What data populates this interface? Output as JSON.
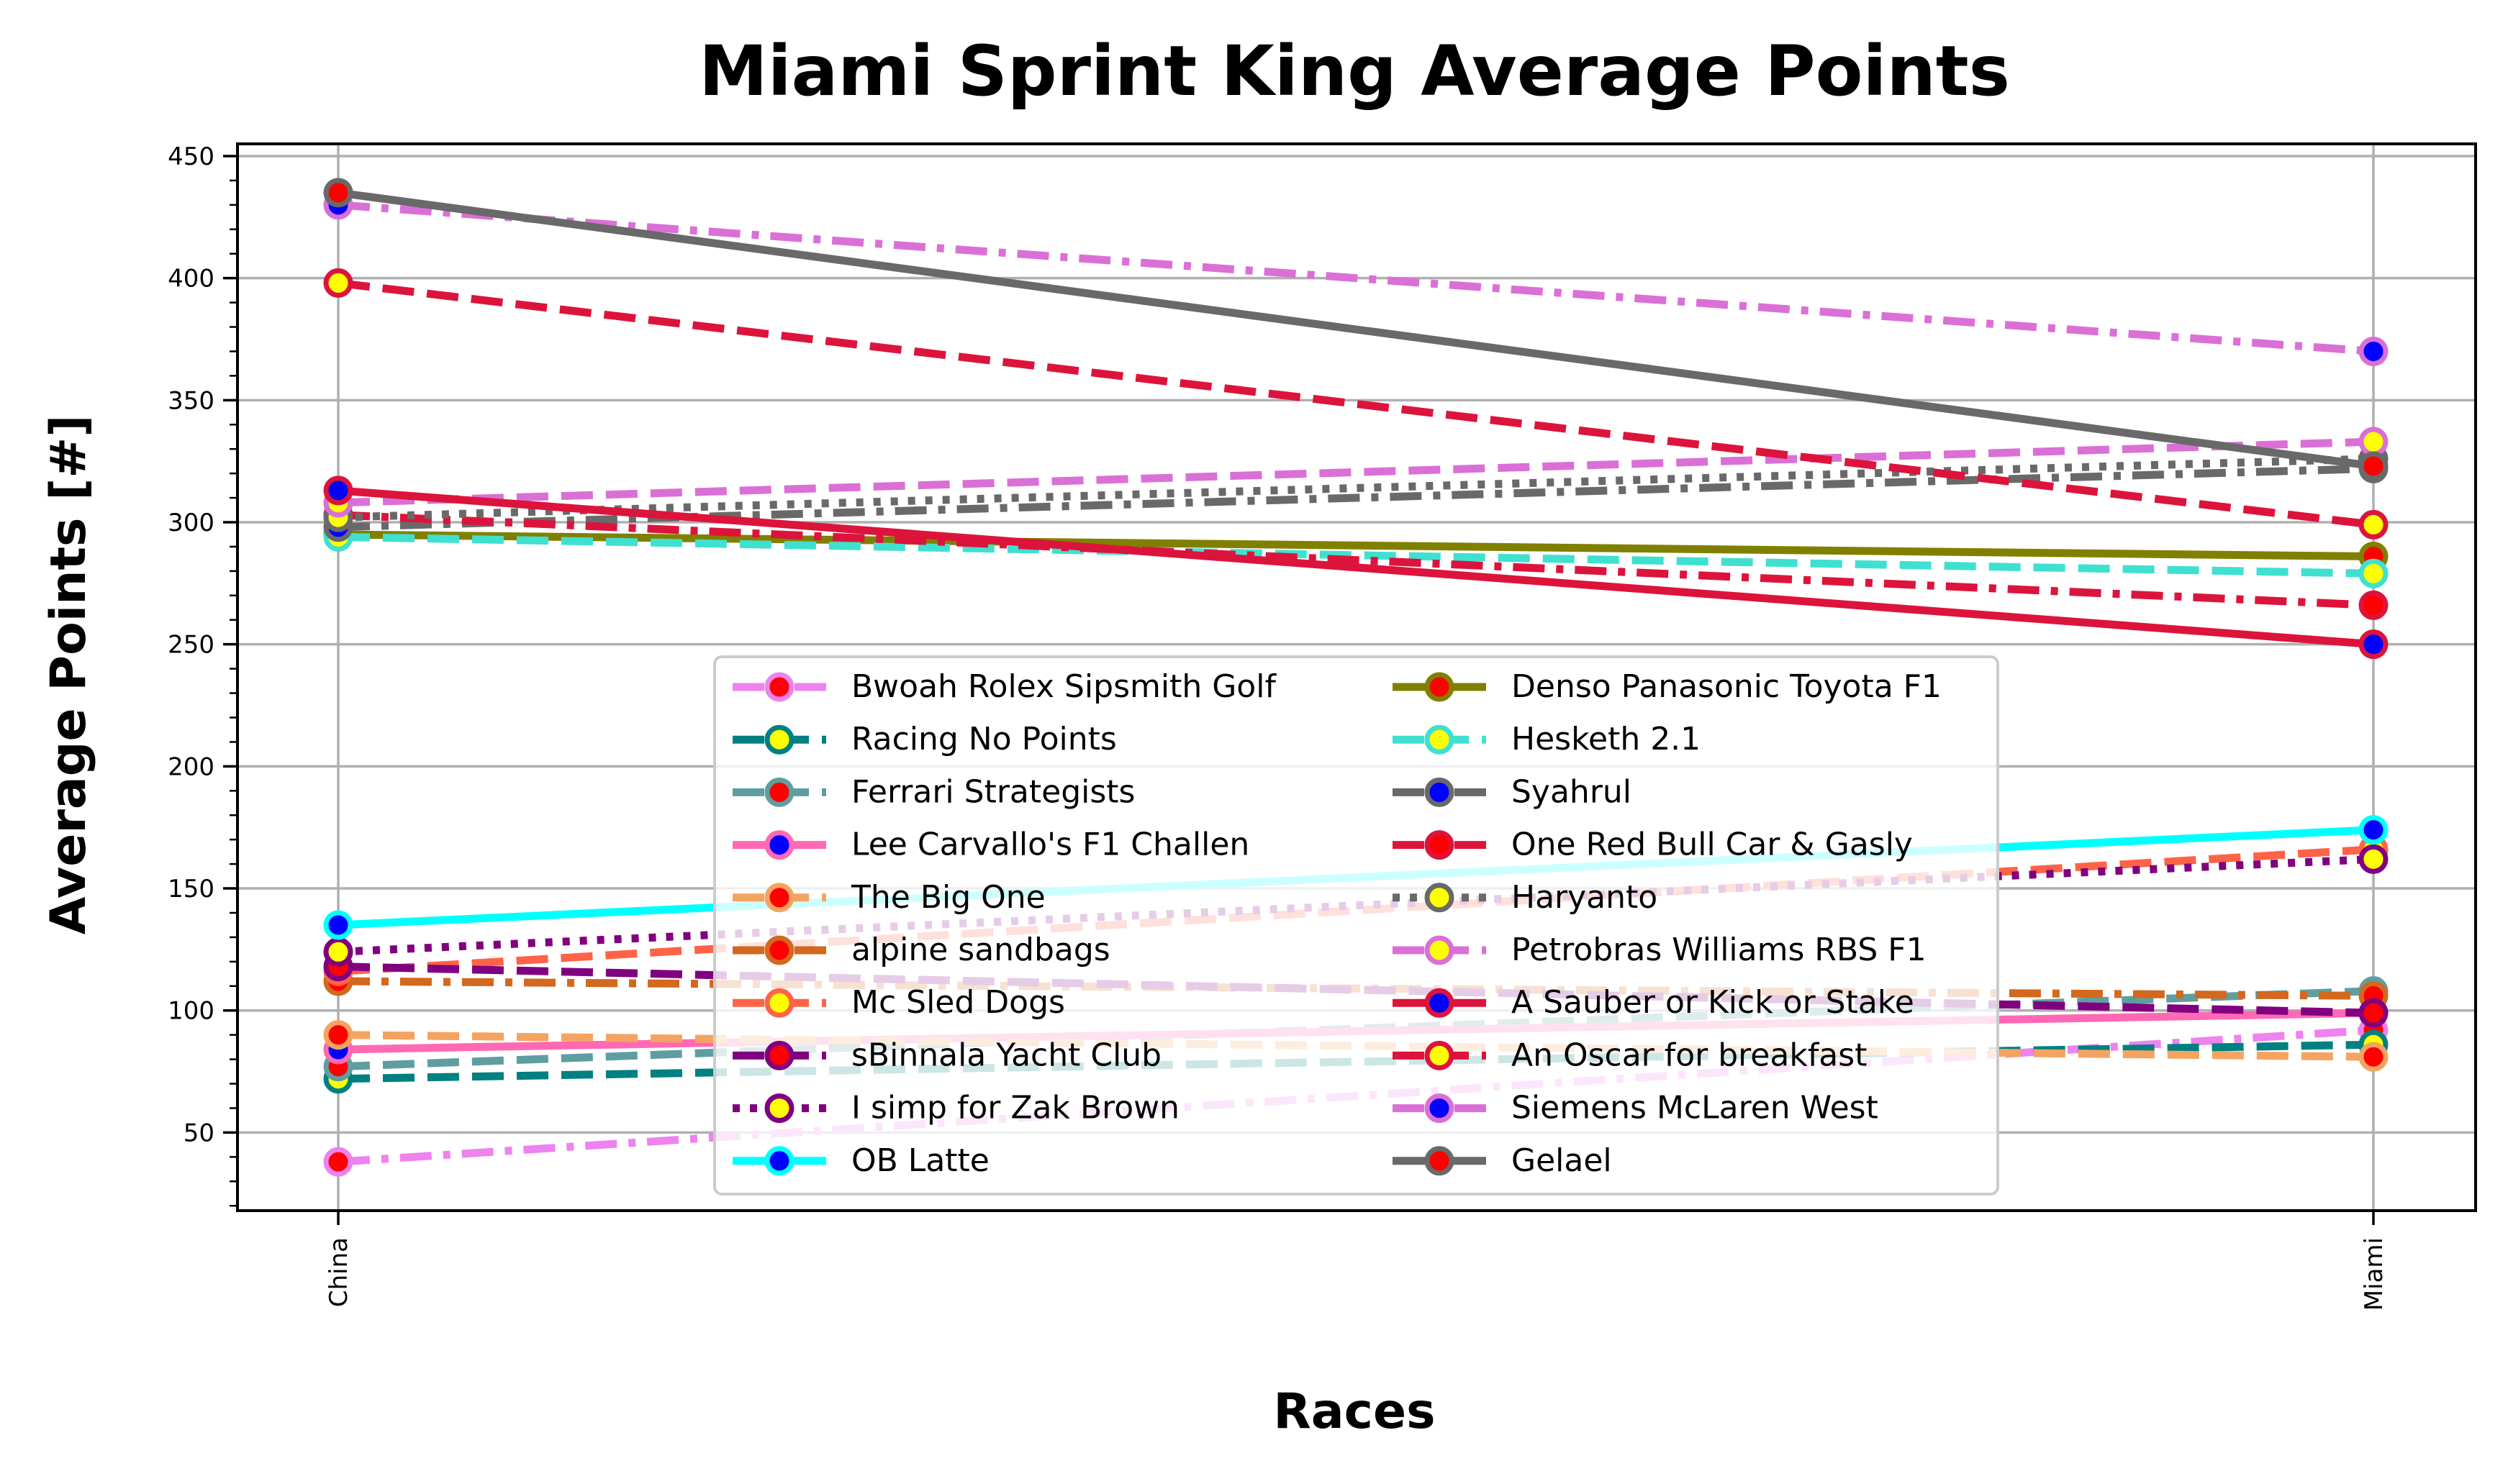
{
  "chart_data": {
    "type": "line",
    "title": "Miami Sprint King Average Points",
    "xlabel": "Races",
    "ylabel": "Average Points [#]",
    "categories": [
      "China",
      "Miami"
    ],
    "ylim": [
      18,
      455
    ],
    "yticks": [
      50,
      100,
      150,
      200,
      250,
      300,
      350,
      400,
      450
    ],
    "grid": true,
    "legend_position": "lower-center",
    "series": [
      {
        "name": "Bwoah Rolex Sipsmith Golf",
        "values": [
          38,
          92
        ],
        "color": "#ee82ee",
        "marker_fill": "#ff0000",
        "dash": "dashdot"
      },
      {
        "name": "Racing No Points",
        "values": [
          72,
          86
        ],
        "color": "#008080",
        "marker_fill": "#ffff00",
        "dash": "dashed"
      },
      {
        "name": "Ferrari Strategists",
        "values": [
          77,
          108
        ],
        "color": "#5f9ea0",
        "marker_fill": "#ff0000",
        "dash": "dashed"
      },
      {
        "name": "Lee Carvallo's F1 Challen",
        "values": [
          84,
          99
        ],
        "color": "#ff69b4",
        "marker_fill": "#0000ff",
        "dash": "solid"
      },
      {
        "name": "The Big One",
        "values": [
          90,
          81
        ],
        "color": "#f4a460",
        "marker_fill": "#ff0000",
        "dash": "dashed"
      },
      {
        "name": "alpine sandbags",
        "values": [
          112,
          106
        ],
        "color": "#d2691e",
        "marker_fill": "#ff0000",
        "dash": "dashdot"
      },
      {
        "name": "Mc Sled Dogs",
        "values": [
          116,
          166
        ],
        "color": "#ff6347",
        "marker_fill": "#ffff00",
        "dash": "dashed"
      },
      {
        "name": "sBinnala Yacht Club",
        "values": [
          118,
          99
        ],
        "color": "#800080",
        "marker_fill": "#ff0000",
        "dash": "dashed"
      },
      {
        "name": "I simp for Zak Brown",
        "values": [
          124,
          162
        ],
        "color": "#800080",
        "marker_fill": "#ffff00",
        "dash": "dotted"
      },
      {
        "name": "OB Latte",
        "values": [
          135,
          174
        ],
        "color": "#00ffff",
        "marker_fill": "#0000ff",
        "dash": "solid"
      },
      {
        "name": "Denso Panasonic Toyota F1",
        "values": [
          295,
          286
        ],
        "color": "#808000",
        "marker_fill": "#ff0000",
        "dash": "solid"
      },
      {
        "name": "Hesketh 2.1",
        "values": [
          294,
          279
        ],
        "color": "#40e0d0",
        "marker_fill": "#ffff00",
        "dash": "dashed"
      },
      {
        "name": "Syahrul",
        "values": [
          298,
          322
        ],
        "color": "#696969",
        "marker_fill": "#0000ff",
        "dash": "dashdot"
      },
      {
        "name": "One Red Bull Car & Gasly",
        "values": [
          303,
          266
        ],
        "color": "#dc143c",
        "marker_fill": "#ff0000",
        "dash": "dashdot"
      },
      {
        "name": "Haryanto",
        "values": [
          302,
          326
        ],
        "color": "#696969",
        "marker_fill": "#ffff00",
        "dash": "dotted"
      },
      {
        "name": "Petrobras Williams RBS F1",
        "values": [
          308,
          333
        ],
        "color": "#da70d6",
        "marker_fill": "#ffff00",
        "dash": "dashed"
      },
      {
        "name": "A Sauber or Kick or Stake",
        "values": [
          313,
          250
        ],
        "color": "#dc143c",
        "marker_fill": "#0000ff",
        "dash": "solid"
      },
      {
        "name": "An Oscar for breakfast",
        "values": [
          398,
          299
        ],
        "color": "#dc143c",
        "marker_fill": "#ffff00",
        "dash": "dashed"
      },
      {
        "name": "Siemens McLaren West",
        "values": [
          430,
          370
        ],
        "color": "#da70d6",
        "marker_fill": "#0000ff",
        "dash": "dashdot"
      },
      {
        "name": "Gelael",
        "values": [
          435,
          323
        ],
        "color": "#696969",
        "marker_fill": "#ff0000",
        "dash": "solid"
      }
    ]
  }
}
